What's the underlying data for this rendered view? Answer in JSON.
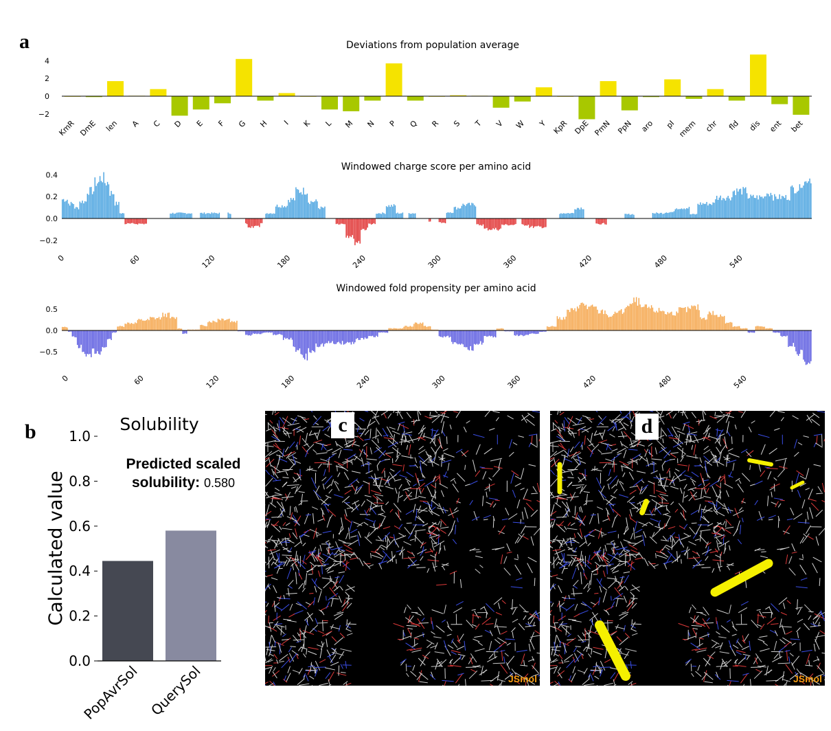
{
  "panels": {
    "a": "a",
    "b": "b",
    "c": "c",
    "d": "d"
  },
  "jsmol_label": "JSmol",
  "colors": {
    "deviation": "#f5e300",
    "deviation_neg": "#a8c800",
    "charge_pos": "#4aa3e0",
    "charge_neg": "#e03030",
    "fold_pos": "#f5a54a",
    "fold_neg": "#5a5ae0",
    "bar_popavr": "#454852",
    "bar_query": "#888aa0",
    "stick": "#f5f000"
  },
  "prediction": {
    "label": "Predicted scaled solubility:",
    "value": "0.580"
  },
  "chart_data": [
    {
      "type": "bar",
      "title": "Deviations from population average",
      "categories": [
        "KmR",
        "DmE",
        "len",
        "A",
        "C",
        "D",
        "E",
        "F",
        "G",
        "H",
        "I",
        "K",
        "L",
        "M",
        "N",
        "P",
        "Q",
        "R",
        "S",
        "T",
        "V",
        "W",
        "Y",
        "KpR",
        "DpE",
        "PmN",
        "PpN",
        "aro",
        "pI",
        "mem",
        "chr",
        "fld",
        "dis",
        "ent",
        "bet"
      ],
      "values": [
        0.0,
        -0.1,
        1.7,
        0.05,
        0.8,
        -2.2,
        -1.5,
        -0.8,
        4.2,
        -0.5,
        0.35,
        0.0,
        -1.5,
        -1.7,
        -0.5,
        3.7,
        -0.5,
        0.0,
        0.1,
        0.05,
        -1.3,
        -0.6,
        1.0,
        0.0,
        -2.6,
        1.7,
        -1.6,
        -0.1,
        1.9,
        -0.3,
        0.8,
        -0.5,
        4.7,
        -0.9,
        -2.1
      ],
      "yticks": [
        "4",
        "2",
        "0",
        "−2"
      ],
      "ylim": [
        -3,
        5
      ]
    },
    {
      "type": "bar",
      "title": "Windowed charge score per amino acid",
      "xticks": [
        "0",
        "60",
        "120",
        "180",
        "240",
        "300",
        "360",
        "420",
        "480",
        "540"
      ],
      "yticks": [
        "0.4",
        "0.2",
        "0.0",
        "−0.2"
      ],
      "xlim": [
        0,
        597
      ],
      "ylim": [
        -0.25,
        0.42
      ],
      "segments": [
        {
          "x0": 0,
          "x1": 5,
          "v": 0.18
        },
        {
          "x0": 5,
          "x1": 10,
          "v": 0.14
        },
        {
          "x0": 10,
          "x1": 14,
          "v": 0.1
        },
        {
          "x0": 14,
          "x1": 20,
          "v": 0.16
        },
        {
          "x0": 20,
          "x1": 26,
          "v": 0.26
        },
        {
          "x0": 26,
          "x1": 30,
          "v": 0.34
        },
        {
          "x0": 30,
          "x1": 34,
          "v": 0.38
        },
        {
          "x0": 34,
          "x1": 38,
          "v": 0.34
        },
        {
          "x0": 38,
          "x1": 42,
          "v": 0.24
        },
        {
          "x0": 42,
          "x1": 46,
          "v": 0.14
        },
        {
          "x0": 46,
          "x1": 50,
          "v": 0.05
        },
        {
          "x0": 50,
          "x1": 68,
          "v": -0.05
        },
        {
          "x0": 68,
          "x1": 86,
          "v": 0.0
        },
        {
          "x0": 86,
          "x1": 104,
          "v": 0.05
        },
        {
          "x0": 104,
          "x1": 110,
          "v": 0.0
        },
        {
          "x0": 110,
          "x1": 126,
          "v": 0.05
        },
        {
          "x0": 126,
          "x1": 132,
          "v": 0.0
        },
        {
          "x0": 132,
          "x1": 135,
          "v": 0.05
        },
        {
          "x0": 135,
          "x1": 146,
          "v": 0.0
        },
        {
          "x0": 146,
          "x1": 148,
          "v": -0.05
        },
        {
          "x0": 148,
          "x1": 158,
          "v": -0.08
        },
        {
          "x0": 158,
          "x1": 160,
          "v": -0.04
        },
        {
          "x0": 160,
          "x1": 162,
          "v": 0.0
        },
        {
          "x0": 162,
          "x1": 170,
          "v": 0.05
        },
        {
          "x0": 170,
          "x1": 180,
          "v": 0.12
        },
        {
          "x0": 180,
          "x1": 186,
          "v": 0.18
        },
        {
          "x0": 186,
          "x1": 196,
          "v": 0.26
        },
        {
          "x0": 196,
          "x1": 204,
          "v": 0.16
        },
        {
          "x0": 204,
          "x1": 210,
          "v": 0.1
        },
        {
          "x0": 210,
          "x1": 218,
          "v": 0.0
        },
        {
          "x0": 218,
          "x1": 226,
          "v": -0.05
        },
        {
          "x0": 226,
          "x1": 232,
          "v": -0.16
        },
        {
          "x0": 232,
          "x1": 238,
          "v": -0.22
        },
        {
          "x0": 238,
          "x1": 244,
          "v": -0.1
        },
        {
          "x0": 244,
          "x1": 250,
          "v": -0.05
        },
        {
          "x0": 250,
          "x1": 258,
          "v": 0.05
        },
        {
          "x0": 258,
          "x1": 266,
          "v": 0.12
        },
        {
          "x0": 266,
          "x1": 272,
          "v": 0.05
        },
        {
          "x0": 272,
          "x1": 276,
          "v": 0.0
        },
        {
          "x0": 276,
          "x1": 282,
          "v": 0.05
        },
        {
          "x0": 282,
          "x1": 292,
          "v": 0.0
        },
        {
          "x0": 292,
          "x1": 294,
          "v": -0.03
        },
        {
          "x0": 294,
          "x1": 300,
          "v": 0.0
        },
        {
          "x0": 300,
          "x1": 306,
          "v": -0.04
        },
        {
          "x0": 306,
          "x1": 312,
          "v": 0.06
        },
        {
          "x0": 312,
          "x1": 318,
          "v": 0.1
        },
        {
          "x0": 318,
          "x1": 330,
          "v": 0.13
        },
        {
          "x0": 330,
          "x1": 336,
          "v": -0.06
        },
        {
          "x0": 336,
          "x1": 350,
          "v": -0.1
        },
        {
          "x0": 350,
          "x1": 362,
          "v": -0.06
        },
        {
          "x0": 362,
          "x1": 366,
          "v": 0.0
        },
        {
          "x0": 366,
          "x1": 372,
          "v": -0.06
        },
        {
          "x0": 372,
          "x1": 386,
          "v": -0.08
        },
        {
          "x0": 386,
          "x1": 396,
          "v": 0.0
        },
        {
          "x0": 396,
          "x1": 408,
          "v": 0.05
        },
        {
          "x0": 408,
          "x1": 416,
          "v": 0.1
        },
        {
          "x0": 416,
          "x1": 425,
          "v": 0.0
        },
        {
          "x0": 425,
          "x1": 434,
          "v": -0.05
        },
        {
          "x0": 434,
          "x1": 448,
          "v": 0.0
        },
        {
          "x0": 448,
          "x1": 456,
          "v": 0.04
        },
        {
          "x0": 456,
          "x1": 470,
          "v": 0.0
        },
        {
          "x0": 470,
          "x1": 480,
          "v": 0.05
        },
        {
          "x0": 480,
          "x1": 488,
          "v": 0.06
        },
        {
          "x0": 488,
          "x1": 500,
          "v": 0.1
        },
        {
          "x0": 500,
          "x1": 506,
          "v": 0.04
        },
        {
          "x0": 506,
          "x1": 520,
          "v": 0.14
        },
        {
          "x0": 520,
          "x1": 534,
          "v": 0.2
        },
        {
          "x0": 534,
          "x1": 546,
          "v": 0.26
        },
        {
          "x0": 546,
          "x1": 560,
          "v": 0.2
        },
        {
          "x0": 560,
          "x1": 566,
          "v": 0.24
        },
        {
          "x0": 566,
          "x1": 580,
          "v": 0.2
        },
        {
          "x0": 580,
          "x1": 588,
          "v": 0.28
        },
        {
          "x0": 588,
          "x1": 593,
          "v": 0.34
        },
        {
          "x0": 593,
          "x1": 597,
          "v": 0.38
        }
      ]
    },
    {
      "type": "bar",
      "title": "Windowed fold propensity per amino acid",
      "xticks": [
        "0",
        "60",
        "120",
        "180",
        "240",
        "300",
        "360",
        "420",
        "480",
        "540"
      ],
      "yticks": [
        "0.5",
        "0.0",
        "−0.5"
      ],
      "xlim": [
        0,
        597
      ],
      "ylim": [
        -0.85,
        0.8
      ],
      "segments": [
        {
          "x0": 0,
          "x1": 5,
          "v": 0.08
        },
        {
          "x0": 5,
          "x1": 8,
          "v": -0.03
        },
        {
          "x0": 8,
          "x1": 12,
          "v": -0.15
        },
        {
          "x0": 12,
          "x1": 16,
          "v": -0.4
        },
        {
          "x0": 16,
          "x1": 20,
          "v": -0.55
        },
        {
          "x0": 20,
          "x1": 24,
          "v": -0.65
        },
        {
          "x0": 24,
          "x1": 28,
          "v": -0.5
        },
        {
          "x0": 28,
          "x1": 32,
          "v": -0.52
        },
        {
          "x0": 32,
          "x1": 36,
          "v": -0.4
        },
        {
          "x0": 36,
          "x1": 40,
          "v": -0.22
        },
        {
          "x0": 40,
          "x1": 44,
          "v": -0.05
        },
        {
          "x0": 44,
          "x1": 50,
          "v": 0.1
        },
        {
          "x0": 50,
          "x1": 60,
          "v": 0.18
        },
        {
          "x0": 60,
          "x1": 70,
          "v": 0.25
        },
        {
          "x0": 70,
          "x1": 80,
          "v": 0.3
        },
        {
          "x0": 80,
          "x1": 86,
          "v": 0.38
        },
        {
          "x0": 86,
          "x1": 92,
          "v": 0.3
        },
        {
          "x0": 92,
          "x1": 96,
          "v": 0.05
        },
        {
          "x0": 96,
          "x1": 100,
          "v": -0.08
        },
        {
          "x0": 100,
          "x1": 110,
          "v": 0.02
        },
        {
          "x0": 110,
          "x1": 116,
          "v": 0.12
        },
        {
          "x0": 116,
          "x1": 124,
          "v": 0.22
        },
        {
          "x0": 124,
          "x1": 134,
          "v": 0.28
        },
        {
          "x0": 134,
          "x1": 140,
          "v": 0.22
        },
        {
          "x0": 140,
          "x1": 146,
          "v": -0.02
        },
        {
          "x0": 146,
          "x1": 152,
          "v": -0.12
        },
        {
          "x0": 152,
          "x1": 160,
          "v": -0.08
        },
        {
          "x0": 160,
          "x1": 168,
          "v": -0.05
        },
        {
          "x0": 168,
          "x1": 176,
          "v": -0.1
        },
        {
          "x0": 176,
          "x1": 184,
          "v": -0.2
        },
        {
          "x0": 184,
          "x1": 190,
          "v": -0.45
        },
        {
          "x0": 190,
          "x1": 196,
          "v": -0.65
        },
        {
          "x0": 196,
          "x1": 202,
          "v": -0.5
        },
        {
          "x0": 202,
          "x1": 210,
          "v": -0.35
        },
        {
          "x0": 210,
          "x1": 222,
          "v": -0.3
        },
        {
          "x0": 222,
          "x1": 234,
          "v": -0.3
        },
        {
          "x0": 234,
          "x1": 244,
          "v": -0.2
        },
        {
          "x0": 244,
          "x1": 252,
          "v": -0.15
        },
        {
          "x0": 252,
          "x1": 260,
          "v": -0.05
        },
        {
          "x0": 260,
          "x1": 272,
          "v": 0.05
        },
        {
          "x0": 272,
          "x1": 280,
          "v": 0.1
        },
        {
          "x0": 280,
          "x1": 288,
          "v": 0.18
        },
        {
          "x0": 288,
          "x1": 294,
          "v": 0.1
        },
        {
          "x0": 294,
          "x1": 300,
          "v": 0.02
        },
        {
          "x0": 300,
          "x1": 310,
          "v": -0.15
        },
        {
          "x0": 310,
          "x1": 320,
          "v": -0.3
        },
        {
          "x0": 320,
          "x1": 328,
          "v": -0.45
        },
        {
          "x0": 328,
          "x1": 336,
          "v": -0.3
        },
        {
          "x0": 336,
          "x1": 346,
          "v": -0.15
        },
        {
          "x0": 346,
          "x1": 352,
          "v": 0.05
        },
        {
          "x0": 352,
          "x1": 360,
          "v": -0.02
        },
        {
          "x0": 360,
          "x1": 372,
          "v": -0.12
        },
        {
          "x0": 372,
          "x1": 380,
          "v": -0.08
        },
        {
          "x0": 380,
          "x1": 386,
          "v": -0.03
        },
        {
          "x0": 386,
          "x1": 394,
          "v": 0.1
        },
        {
          "x0": 394,
          "x1": 402,
          "v": 0.3
        },
        {
          "x0": 402,
          "x1": 410,
          "v": 0.48
        },
        {
          "x0": 410,
          "x1": 418,
          "v": 0.62
        },
        {
          "x0": 418,
          "x1": 426,
          "v": 0.55
        },
        {
          "x0": 426,
          "x1": 434,
          "v": 0.45
        },
        {
          "x0": 434,
          "x1": 440,
          "v": 0.35
        },
        {
          "x0": 440,
          "x1": 448,
          "v": 0.45
        },
        {
          "x0": 448,
          "x1": 454,
          "v": 0.58
        },
        {
          "x0": 454,
          "x1": 460,
          "v": 0.7
        },
        {
          "x0": 460,
          "x1": 470,
          "v": 0.55
        },
        {
          "x0": 470,
          "x1": 480,
          "v": 0.48
        },
        {
          "x0": 480,
          "x1": 490,
          "v": 0.42
        },
        {
          "x0": 490,
          "x1": 500,
          "v": 0.5
        },
        {
          "x0": 500,
          "x1": 508,
          "v": 0.55
        },
        {
          "x0": 508,
          "x1": 514,
          "v": 0.3
        },
        {
          "x0": 514,
          "x1": 520,
          "v": 0.42
        },
        {
          "x0": 520,
          "x1": 528,
          "v": 0.35
        },
        {
          "x0": 528,
          "x1": 534,
          "v": 0.2
        },
        {
          "x0": 534,
          "x1": 540,
          "v": 0.1
        },
        {
          "x0": 540,
          "x1": 546,
          "v": 0.05
        },
        {
          "x0": 546,
          "x1": 552,
          "v": -0.05
        },
        {
          "x0": 552,
          "x1": 560,
          "v": 0.1
        },
        {
          "x0": 560,
          "x1": 566,
          "v": 0.05
        },
        {
          "x0": 566,
          "x1": 572,
          "v": -0.05
        },
        {
          "x0": 572,
          "x1": 578,
          "v": -0.15
        },
        {
          "x0": 578,
          "x1": 584,
          "v": -0.35
        },
        {
          "x0": 584,
          "x1": 590,
          "v": -0.55
        },
        {
          "x0": 590,
          "x1": 597,
          "v": -0.75
        }
      ]
    },
    {
      "type": "bar",
      "title": "Solubility",
      "ylabel": "Calculated value",
      "categories": [
        "PopAvrSol",
        "QuerySol"
      ],
      "values": [
        0.445,
        0.58
      ],
      "yticks": [
        "1.0",
        "0.8",
        "0.6",
        "0.4",
        "0.2",
        "0.0"
      ],
      "ylim": [
        0,
        1.0
      ]
    }
  ]
}
